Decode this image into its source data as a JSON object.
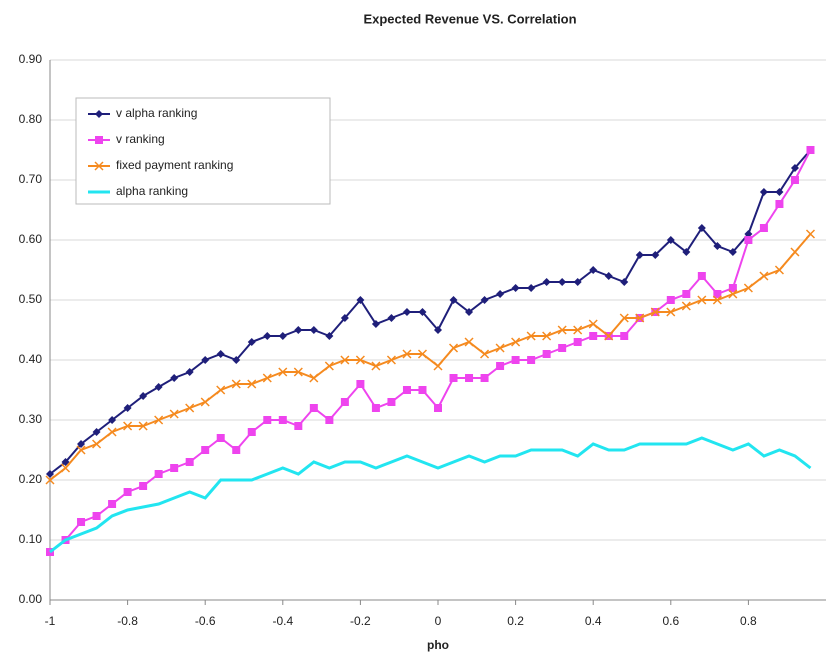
{
  "chart_data": {
    "type": "line",
    "title": "Expected Revenue VS. Correlation",
    "x_label": "pho",
    "x": [
      -1,
      -0.96,
      -0.92,
      -0.88,
      -0.84,
      -0.8,
      -0.76,
      -0.72,
      -0.68,
      -0.64,
      -0.6,
      -0.56,
      -0.52,
      -0.48,
      -0.44,
      -0.4,
      -0.36,
      -0.32,
      -0.28,
      -0.24,
      -0.2,
      -0.16,
      -0.12,
      -0.08,
      -0.04,
      0,
      0.04,
      0.08,
      0.12,
      0.16,
      0.2,
      0.24,
      0.28,
      0.32,
      0.36,
      0.4,
      0.44,
      0.48,
      0.52,
      0.56,
      0.6,
      0.64,
      0.68,
      0.72,
      0.76,
      0.8,
      0.84,
      0.88,
      0.92,
      0.96
    ],
    "series": [
      {
        "name": "v alpha ranking",
        "color": "#1f1f7a",
        "marker": "diamond",
        "values": [
          0.21,
          0.23,
          0.26,
          0.28,
          0.3,
          0.32,
          0.34,
          0.355,
          0.37,
          0.38,
          0.4,
          0.41,
          0.4,
          0.43,
          0.44,
          0.44,
          0.45,
          0.45,
          0.44,
          0.47,
          0.5,
          0.46,
          0.47,
          0.48,
          0.48,
          0.45,
          0.5,
          0.48,
          0.5,
          0.51,
          0.52,
          0.52,
          0.53,
          0.53,
          0.53,
          0.55,
          0.54,
          0.53,
          0.575,
          0.575,
          0.6,
          0.58,
          0.62,
          0.59,
          0.58,
          0.61,
          0.68,
          0.68,
          0.72,
          0.75
        ]
      },
      {
        "name": "v ranking",
        "color": "#ee44ee",
        "marker": "square",
        "values": [
          0.08,
          0.1,
          0.13,
          0.14,
          0.16,
          0.18,
          0.19,
          0.21,
          0.22,
          0.23,
          0.25,
          0.27,
          0.25,
          0.28,
          0.3,
          0.3,
          0.29,
          0.32,
          0.3,
          0.33,
          0.36,
          0.32,
          0.33,
          0.35,
          0.35,
          0.32,
          0.37,
          0.37,
          0.37,
          0.39,
          0.4,
          0.4,
          0.41,
          0.42,
          0.43,
          0.44,
          0.44,
          0.44,
          0.47,
          0.48,
          0.5,
          0.51,
          0.54,
          0.51,
          0.52,
          0.6,
          0.62,
          0.66,
          0.7,
          0.75
        ]
      },
      {
        "name": "fixed payment ranking",
        "color": "#f58a1f",
        "marker": "cross",
        "values": [
          0.2,
          0.22,
          0.25,
          0.26,
          0.28,
          0.29,
          0.29,
          0.3,
          0.31,
          0.32,
          0.33,
          0.35,
          0.36,
          0.36,
          0.37,
          0.38,
          0.38,
          0.37,
          0.39,
          0.4,
          0.4,
          0.39,
          0.4,
          0.41,
          0.41,
          0.39,
          0.42,
          0.43,
          0.41,
          0.42,
          0.43,
          0.44,
          0.44,
          0.45,
          0.45,
          0.46,
          0.44,
          0.47,
          0.47,
          0.48,
          0.48,
          0.49,
          0.5,
          0.5,
          0.51,
          0.52,
          0.54,
          0.55,
          0.58,
          0.61
        ]
      },
      {
        "name": "alpha ranking",
        "color": "#22e5f0",
        "marker": "none",
        "values": [
          0.08,
          0.1,
          0.11,
          0.12,
          0.14,
          0.15,
          0.155,
          0.16,
          0.17,
          0.18,
          0.17,
          0.2,
          0.2,
          0.2,
          0.21,
          0.22,
          0.21,
          0.23,
          0.22,
          0.23,
          0.23,
          0.22,
          0.23,
          0.24,
          0.23,
          0.22,
          0.23,
          0.24,
          0.23,
          0.24,
          0.24,
          0.25,
          0.25,
          0.25,
          0.24,
          0.26,
          0.25,
          0.25,
          0.26,
          0.26,
          0.26,
          0.26,
          0.27,
          0.26,
          0.25,
          0.26,
          0.24,
          0.25,
          0.24,
          0.22
        ]
      }
    ],
    "xlim": [
      -1,
      1
    ],
    "xticks": [
      -1,
      -0.8,
      -0.6,
      -0.4,
      -0.2,
      0,
      0.2,
      0.4,
      0.6,
      0.8
    ],
    "ylim": [
      0,
      0.9
    ],
    "yticks": [
      {
        "value": 0,
        "label": "0.00"
      },
      {
        "value": 0.1,
        "label": "0.10"
      },
      {
        "value": 0.2,
        "label": "0.20"
      },
      {
        "value": 0.3,
        "label": "0.30"
      },
      {
        "value": 0.4,
        "label": "0.40"
      },
      {
        "value": 0.5,
        "label": "0.50"
      },
      {
        "value": 0.6,
        "label": "0.60"
      },
      {
        "value": 0.7,
        "label": "0.70"
      },
      {
        "value": 0.8,
        "label": "0.80"
      },
      {
        "value": 0.9,
        "label": "0.90"
      }
    ],
    "grid": true,
    "legend": "upper left"
  }
}
